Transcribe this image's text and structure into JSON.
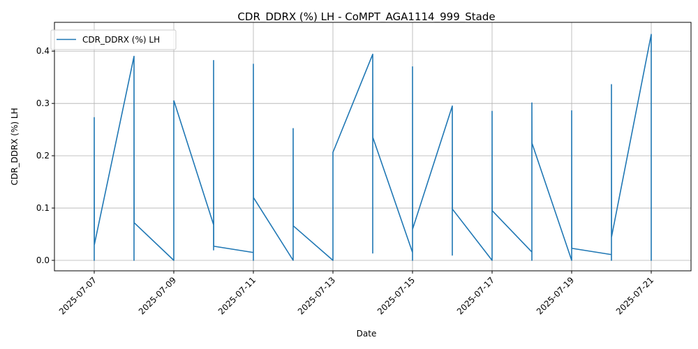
{
  "chart_data": {
    "type": "line",
    "title": "CDR_DDRX (%) LH - CoMPT_AGA1114_999_Stade",
    "xlabel": "Date",
    "ylabel": "CDR_DDRX (%) LH",
    "x_type": "date",
    "xlim": [
      "2025-07-06",
      "2025-07-22"
    ],
    "ylim": [
      -0.02,
      0.455
    ],
    "x_ticks": [
      "2025-07-07",
      "2025-07-09",
      "2025-07-11",
      "2025-07-13",
      "2025-07-15",
      "2025-07-17",
      "2025-07-19",
      "2025-07-21"
    ],
    "y_ticks": [
      "0.0",
      "0.1",
      "0.2",
      "0.3",
      "0.4"
    ],
    "grid": true,
    "legend": {
      "placement": "top-left"
    },
    "series": [
      {
        "name": "CDR_DDRX (%) LH",
        "color": "#1f77b4",
        "segments": [
          {
            "date": "2025-07-07",
            "vmin": 0.0,
            "vmax": 0.273,
            "start": 0.03,
            "end": 0.03
          },
          {
            "date": "2025-07-08",
            "vmin": 0.0,
            "vmax": 0.39,
            "start": 0.39,
            "end": 0.072
          },
          {
            "date": "2025-07-09",
            "vmin": 0.0,
            "vmax": 0.305,
            "start": 0.0,
            "end": 0.305
          },
          {
            "date": "2025-07-10",
            "vmin": 0.02,
            "vmax": 0.382,
            "start": 0.068,
            "end": 0.027
          },
          {
            "date": "2025-07-11",
            "vmin": 0.0,
            "vmax": 0.375,
            "start": 0.015,
            "end": 0.12
          },
          {
            "date": "2025-07-12",
            "vmin": 0.0,
            "vmax": 0.252,
            "start": 0.0,
            "end": 0.066
          },
          {
            "date": "2025-07-13",
            "vmin": 0.0,
            "vmax": 0.207,
            "start": 0.0,
            "end": 0.207
          },
          {
            "date": "2025-07-14",
            "vmin": 0.014,
            "vmax": 0.394,
            "start": 0.394,
            "end": 0.235
          },
          {
            "date": "2025-07-15",
            "vmin": 0.0,
            "vmax": 0.37,
            "start": 0.015,
            "end": 0.06
          },
          {
            "date": "2025-07-16",
            "vmin": 0.01,
            "vmax": 0.295,
            "start": 0.295,
            "end": 0.098
          },
          {
            "date": "2025-07-17",
            "vmin": 0.0,
            "vmax": 0.285,
            "start": 0.0,
            "end": 0.095
          },
          {
            "date": "2025-07-18",
            "vmin": 0.0,
            "vmax": 0.301,
            "start": 0.016,
            "end": 0.224
          },
          {
            "date": "2025-07-19",
            "vmin": 0.0,
            "vmax": 0.286,
            "start": 0.0,
            "end": 0.023
          },
          {
            "date": "2025-07-20",
            "vmin": 0.0,
            "vmax": 0.336,
            "start": 0.011,
            "end": 0.045
          },
          {
            "date": "2025-07-21",
            "vmin": 0.0,
            "vmax": 0.432,
            "start": 0.432,
            "end": 0.432
          }
        ]
      }
    ]
  }
}
